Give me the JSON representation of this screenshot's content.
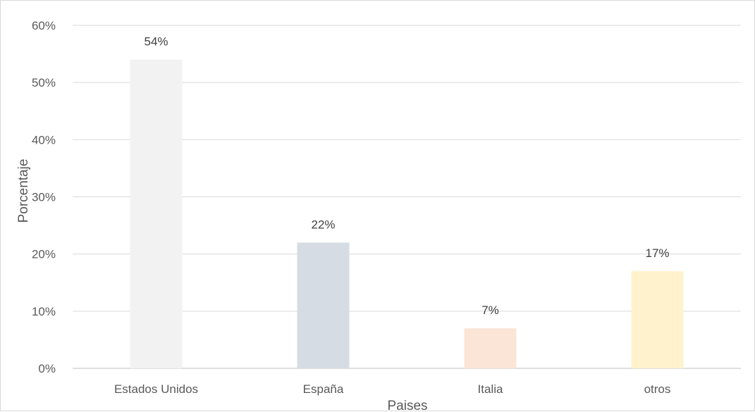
{
  "chart_data": {
    "type": "bar",
    "title": "",
    "xlabel": "Paises",
    "ylabel": "Porcentaje",
    "categories": [
      "Estados Unidos",
      "España",
      "Italia",
      "otros"
    ],
    "values": [
      54,
      22,
      7,
      17
    ],
    "data_labels": [
      "54%",
      "22%",
      "7%",
      "17%"
    ],
    "ylim": [
      0,
      60
    ],
    "y_ticks": [
      0,
      10,
      20,
      30,
      40,
      50,
      60
    ],
    "y_tick_labels": [
      "0%",
      "10%",
      "20%",
      "30%",
      "40%",
      "50%",
      "60%"
    ],
    "grid": true,
    "legend": "none",
    "bar_colors": [
      "#f2f2f2",
      "#d6dce4",
      "#fbe5d6",
      "#fff2cc"
    ],
    "grid_color": "#d9d9d9",
    "axis_color": "#bfbfbf"
  }
}
